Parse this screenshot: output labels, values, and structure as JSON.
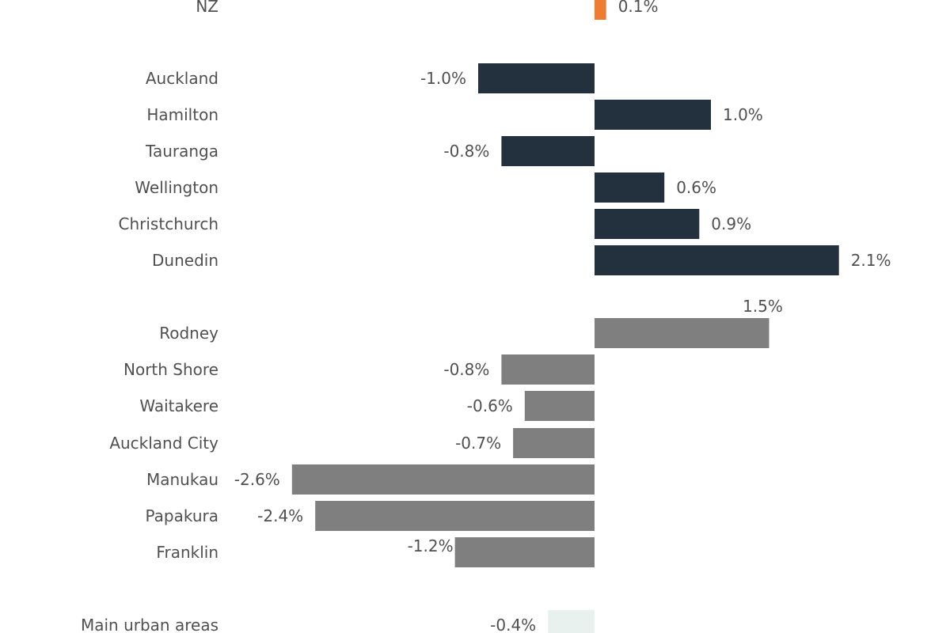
{
  "chart_data": {
    "type": "bar",
    "orientation": "horizontal",
    "grid": false,
    "legend": "none",
    "colors": {
      "national": "#ee7d31",
      "cities": "#23313f",
      "auckland_areas": "#7f7f7f",
      "urban_total": "#e9f1ef"
    },
    "categories": [
      "NZ",
      "Auckland",
      "Hamilton",
      "Tauranga",
      "Wellington",
      "Christchurch",
      "Dunedin",
      "Rodney",
      "North Shore",
      "Waitakere",
      "Auckland City",
      "Manukau",
      "Papakura",
      "Franklin",
      "Main urban areas"
    ],
    "values": [
      0.1,
      -1.0,
      1.0,
      -0.8,
      0.6,
      0.9,
      2.1,
      1.5,
      -0.8,
      -0.6,
      -0.7,
      -2.6,
      -2.4,
      -1.2,
      -0.4
    ],
    "value_labels": [
      "0.1%",
      "-1.0%",
      "1.0%",
      "-0.8%",
      "0.6%",
      "0.9%",
      "2.1%",
      "1.5%",
      "-0.8%",
      "-0.6%",
      "-0.7%",
      "-2.6%",
      "-2.4%",
      "-1.2%",
      "-0.4%"
    ],
    "groups": [
      "national",
      "cities",
      "cities",
      "cities",
      "cities",
      "cities",
      "cities",
      "auckland_areas",
      "auckland_areas",
      "auckland_areas",
      "auckland_areas",
      "auckland_areas",
      "auckland_areas",
      "auckland_areas",
      "urban_total"
    ]
  }
}
